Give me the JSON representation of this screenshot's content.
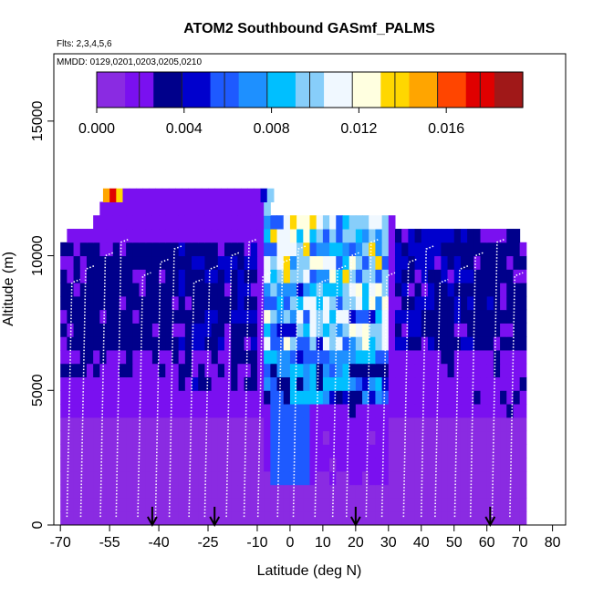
{
  "chart_data": {
    "type": "heatmap",
    "title": "ATOM2 Southbound GASmf_PALMS",
    "subtitle": "Flts: 2,3,4,5,6",
    "annotation": "MMDD: 0129,0201,0203,0205,0210",
    "xlabel": "Latitude (deg N)",
    "ylabel": "Altitude (m)",
    "xlim": [
      -72,
      84
    ],
    "ylim": [
      0,
      17500
    ],
    "x_ticks": [
      -70,
      -55,
      -40,
      -25,
      -10,
      0,
      10,
      20,
      30,
      40,
      50,
      60,
      70,
      80
    ],
    "x_tick_labels": [
      "-70",
      "-55",
      "-40",
      "-25",
      "-10",
      "0",
      "10",
      "20",
      "30",
      "40",
      "50",
      "60",
      "70",
      "80"
    ],
    "y_ticks": [
      0,
      5000,
      10000,
      15000
    ],
    "y_tick_labels": [
      "0",
      "5000",
      "10000",
      "15000"
    ],
    "colorbar": {
      "min": 0,
      "max": 0.0195,
      "ticks": [
        0.0,
        0.004,
        0.008,
        0.012,
        0.016
      ],
      "tick_labels": [
        "0.000",
        "0.004",
        "0.008",
        "0.012",
        "0.016"
      ],
      "colors": [
        "#8a2be2",
        "#7a10f0",
        "#00008b",
        "#0000cd",
        "#1e5aff",
        "#1e90ff",
        "#00bfff",
        "#87cefa",
        "#f0f8ff",
        "#ffffe0",
        "#ffd700",
        "#ffa500",
        "#ff4500",
        "#e00000",
        "#a01818"
      ]
    },
    "flight_marker_lats": [
      -42,
      -23,
      20,
      61
    ],
    "grid": false,
    "legend": "colorbar-top"
  }
}
